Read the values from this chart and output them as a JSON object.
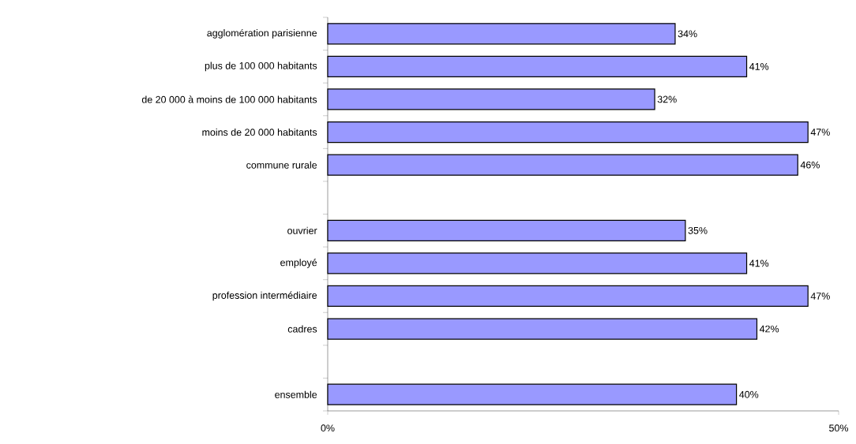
{
  "chart_data": {
    "type": "bar",
    "orientation": "horizontal",
    "categories": [
      "agglomération parisienne",
      "plus de 100 000 habitants",
      "de 20 000 à moins de 100 000 habitants",
      "moins de 20 000 habitants",
      "commune rurale",
      null,
      "ouvrier",
      "employé",
      "profession intermédiaire",
      "cadres",
      null,
      "ensemble"
    ],
    "values": [
      34,
      41,
      32,
      47,
      46,
      null,
      35,
      41,
      47,
      42,
      null,
      40
    ],
    "value_labels": [
      "34%",
      "41%",
      "32%",
      "47%",
      "46%",
      null,
      "35%",
      "41%",
      "47%",
      "42%",
      null,
      "40%"
    ],
    "color": "#9999ff",
    "xlim": [
      0,
      50
    ],
    "xticks": [
      {
        "value": 0,
        "label": "0%"
      },
      {
        "value": 50,
        "label": "50%"
      }
    ]
  }
}
